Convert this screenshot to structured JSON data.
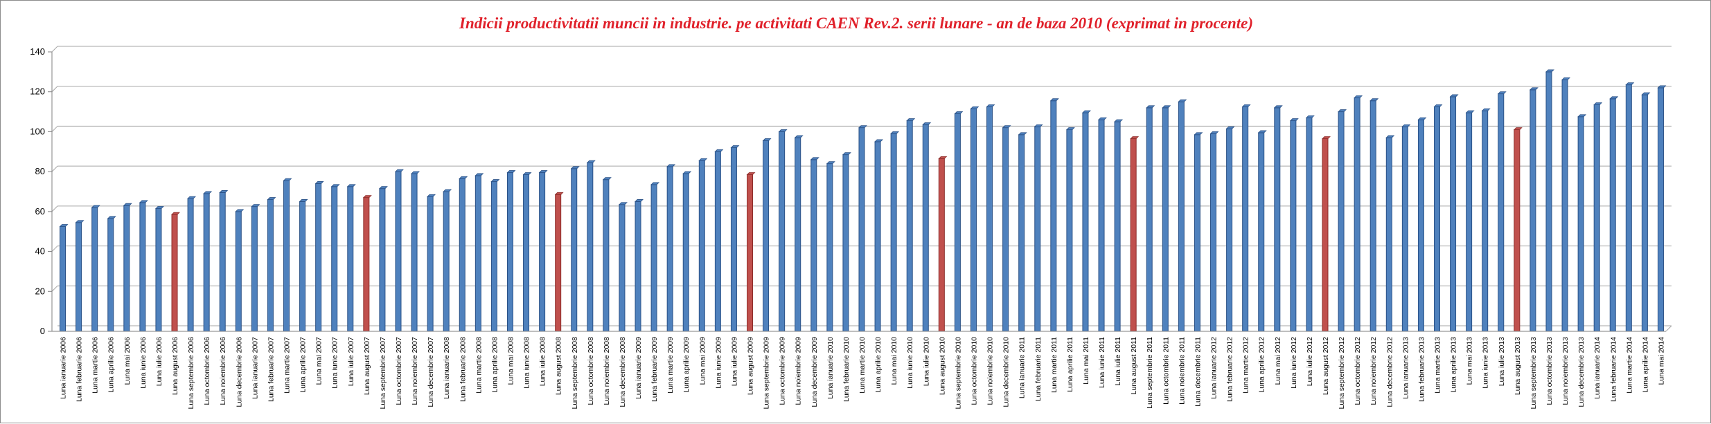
{
  "chart_data": {
    "type": "bar",
    "title": "Indicii productivitatii muncii in industrie. pe activitati CAEN Rev.2. serii lunare - an de baza 2010 (exprimat in procente)",
    "xlabel": "",
    "ylabel": "",
    "ylim": [
      0,
      140
    ],
    "yticks": [
      0,
      20,
      40,
      60,
      80,
      100,
      120,
      140
    ],
    "grid": true,
    "legend": "none",
    "colors": {
      "bar": "#4f81bd",
      "bar_border": "#2a5186",
      "highlight": "#c0504d",
      "highlight_border": "#8c2d2a",
      "grid": "#a6a6a6",
      "title": "#e0202a"
    },
    "highlight_rule": "Luna august bars are shown in red",
    "categories": [
      "Luna ianuarie 2006",
      "Luna februarie 2006",
      "Luna martie 2006",
      "Luna aprilie 2006",
      "Luna mai 2006",
      "Luna iunie 2006",
      "Luna iulie 2006",
      "Luna august 2006",
      "Luna septembrie 2006",
      "Luna octombrie 2006",
      "Luna noiembrie 2006",
      "Luna decembrie 2006",
      "Luna ianuarie 2007",
      "Luna februarie 2007",
      "Luna martie 2007",
      "Luna aprilie 2007",
      "Luna mai 2007",
      "Luna iunie 2007",
      "Luna iulie 2007",
      "Luna august 2007",
      "Luna septembrie 2007",
      "Luna octombrie 2007",
      "Luna noiembrie 2007",
      "Luna decembrie 2007",
      "Luna ianuarie 2008",
      "Luna februarie 2008",
      "Luna martie 2008",
      "Luna aprilie 2008",
      "Luna mai 2008",
      "Luna iunie 2008",
      "Luna iulie 2008",
      "Luna august 2008",
      "Luna septembrie 2008",
      "Luna octombrie 2008",
      "Luna noiembrie 2008",
      "Luna decembrie 2008",
      "Luna ianuarie 2009",
      "Luna februarie 2009",
      "Luna martie 2009",
      "Luna aprilie 2009",
      "Luna mai 2009",
      "Luna iunie 2009",
      "Luna iulie 2009",
      "Luna august 2009",
      "Luna septembrie 2009",
      "Luna octombrie 2009",
      "Luna noiembrie 2009",
      "Luna decembrie 2009",
      "Luna ianuarie 2010",
      "Luna februarie 2010",
      "Luna martie 2010",
      "Luna aprilie 2010",
      "Luna mai 2010",
      "Luna iunie 2010",
      "Luna iulie 2010",
      "Luna august 2010",
      "Luna septembrie 2010",
      "Luna octombrie 2010",
      "Luna noiembrie 2010",
      "Luna decembrie 2010",
      "Luna ianuarie 2011",
      "Luna februarie 2011",
      "Luna martie 2011",
      "Luna aprilie 2011",
      "Luna mai 2011",
      "Luna iunie 2011",
      "Luna iulie 2011",
      "Luna august 2011",
      "Luna septembrie 2011",
      "Luna octombrie 2011",
      "Luna noiembrie 2011",
      "Luna decembrie 2011",
      "Luna ianuarie 2012",
      "Luna februarie 2012",
      "Luna martie 2012",
      "Luna aprilie 2012",
      "Luna mai 2012",
      "Luna iunie 2012",
      "Luna iulie 2012",
      "Luna august 2012",
      "Luna septembrie 2012",
      "Luna octombrie 2012",
      "Luna noiembrie 2012",
      "Luna decembrie 2012",
      "Luna ianuarie 2013",
      "Luna februarie 2013",
      "Luna martie 2013",
      "Luna aprilie 2013",
      "Luna mai 2013",
      "Luna iunie 2013",
      "Luna iulie 2013",
      "Luna august 2013",
      "Luna septembrie 2013",
      "Luna octombrie 2013",
      "Luna noiembrie 2013",
      "Luna decembrie 2013",
      "Luna ianuarie 2014",
      "Luna februarie 2014",
      "Luna martie 2014",
      "Luna aprilie 2014",
      "Luna mai 2014"
    ],
    "values": [
      52.5,
      54.5,
      62,
      56.5,
      63,
      64.5,
      61.5,
      58.5,
      66.5,
      69,
      69.5,
      60,
      62.5,
      66,
      75.5,
      65,
      74,
      72.5,
      72.5,
      67,
      71.5,
      80,
      79,
      67.5,
      70,
      76.5,
      78,
      75,
      79.5,
      78.5,
      79.5,
      68.5,
      81.5,
      84.5,
      76,
      63.5,
      65,
      73.5,
      82.5,
      79,
      85.5,
      90,
      92,
      78.5,
      95.5,
      100,
      97,
      86,
      84,
      88.5,
      102,
      95,
      99,
      105.5,
      103.5,
      86.5,
      109,
      111.5,
      112.5,
      102,
      98.5,
      102.5,
      115.5,
      101,
      109.5,
      106,
      105,
      96.5,
      112,
      112,
      115,
      98.5,
      99,
      101.5,
      112.5,
      99.5,
      112,
      105.5,
      107,
      96.5,
      110,
      117,
      115.5,
      97,
      102.5,
      106,
      112.5,
      117.5,
      109.5,
      110.5,
      119,
      101,
      121,
      130,
      126,
      107.5,
      113.5,
      116.5,
      123.5,
      118.5,
      122
    ]
  }
}
